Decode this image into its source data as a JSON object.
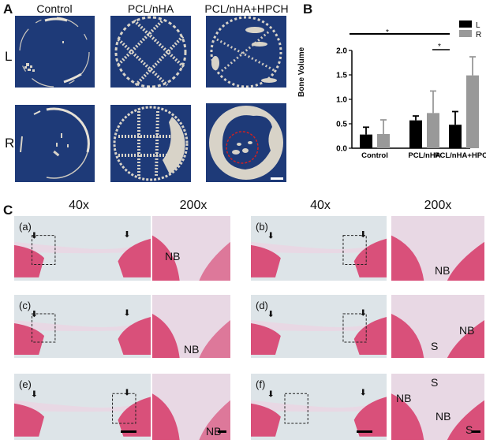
{
  "panelA": {
    "label": "A",
    "columns": [
      "Control",
      "PCL/nHA",
      "PCL/nHA+HPCH"
    ],
    "rows": [
      "L",
      "R"
    ],
    "background_color": "#1e3a78",
    "bone_color": "#d9d4c8",
    "roi_circle_color": "#d02020"
  },
  "panelB": {
    "label": "B",
    "legend": [
      {
        "label": "L",
        "color": "#000000"
      },
      {
        "label": "R",
        "color": "#999999"
      }
    ],
    "significance": [
      {
        "from": "Control",
        "to": "PCL/nHA+HPCH",
        "mark": "*"
      },
      {
        "from": "PCL/nHA+HPCH L",
        "to": "PCL/nHA+HPCH R",
        "mark": "*"
      }
    ]
  },
  "chart_data": {
    "type": "bar",
    "title": "",
    "xlabel": "",
    "ylabel": "Bone Volume",
    "ylim": [
      0,
      2.0
    ],
    "yticks": [
      "0.0",
      "0.5",
      "1.0",
      "1.5",
      "2.0"
    ],
    "categories": [
      "Control",
      "PCL/nHA",
      "PCL/nHA+HPCH"
    ],
    "series": [
      {
        "name": "L",
        "color": "#000000",
        "values": [
          0.28,
          0.57,
          0.48
        ],
        "error": [
          0.15,
          0.09,
          0.27
        ]
      },
      {
        "name": "R",
        "color": "#999999",
        "values": [
          0.29,
          0.72,
          1.49
        ],
        "error": [
          0.29,
          0.45,
          0.38
        ]
      }
    ],
    "grid": false,
    "legend_position": "top-right",
    "annotations": [
      "*",
      "*"
    ]
  },
  "panelC": {
    "label": "C",
    "magnifications": [
      "40x",
      "200x",
      "40x",
      "200x"
    ],
    "subpanels": [
      {
        "id": "(a)",
        "labels": [
          "NB"
        ]
      },
      {
        "id": "(b)",
        "labels": [
          "NB"
        ]
      },
      {
        "id": "(c)",
        "labels": [
          "NB"
        ]
      },
      {
        "id": "(d)",
        "labels": [
          "NB",
          "S"
        ]
      },
      {
        "id": "(e)",
        "labels": [
          "NB"
        ]
      },
      {
        "id": "(f)",
        "labels": [
          "NB",
          "S",
          "NB",
          "S"
        ]
      }
    ],
    "stain_pink": "#d9507a",
    "stain_light": "#e8d8e4",
    "background": "#dde4e8"
  }
}
